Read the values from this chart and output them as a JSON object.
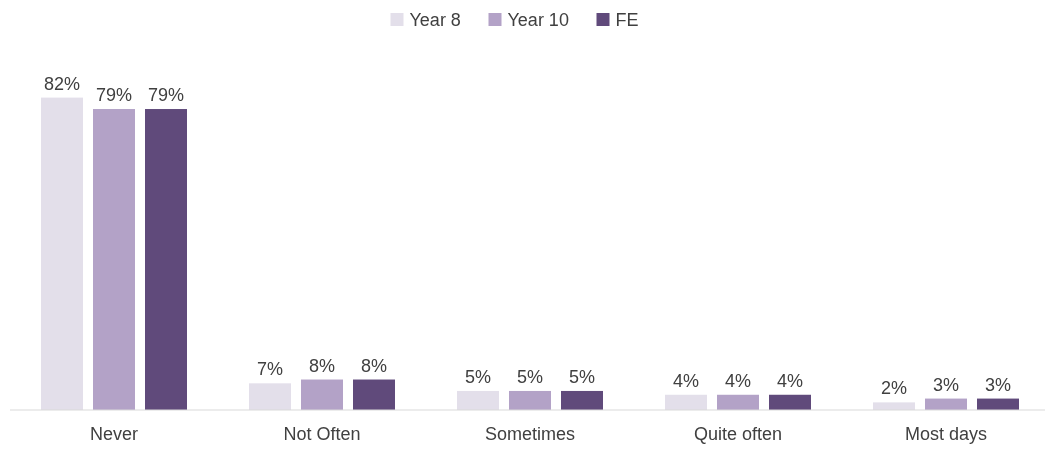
{
  "chart_data": {
    "type": "bar",
    "categories": [
      "Never",
      "Not Often",
      "Sometimes",
      "Quite often",
      "Most days"
    ],
    "series": [
      {
        "name": "Year 8",
        "color": "#e3dfea",
        "values": [
          82,
          7,
          5,
          4,
          2
        ],
        "value_labels": [
          "82%",
          "7%",
          "5%",
          "4%",
          "2%"
        ]
      },
      {
        "name": "Year 10",
        "color": "#b3a2c7",
        "values": [
          79,
          8,
          5,
          4,
          3
        ],
        "value_labels": [
          "79%",
          "8%",
          "5%",
          "4%",
          "3%"
        ]
      },
      {
        "name": "FE",
        "color": "#604a7b",
        "values": [
          79,
          8,
          5,
          4,
          3
        ],
        "value_labels": [
          "79%",
          "8%",
          "5%",
          "4%",
          "3%"
        ]
      }
    ],
    "legend": "top",
    "relative": false
  }
}
